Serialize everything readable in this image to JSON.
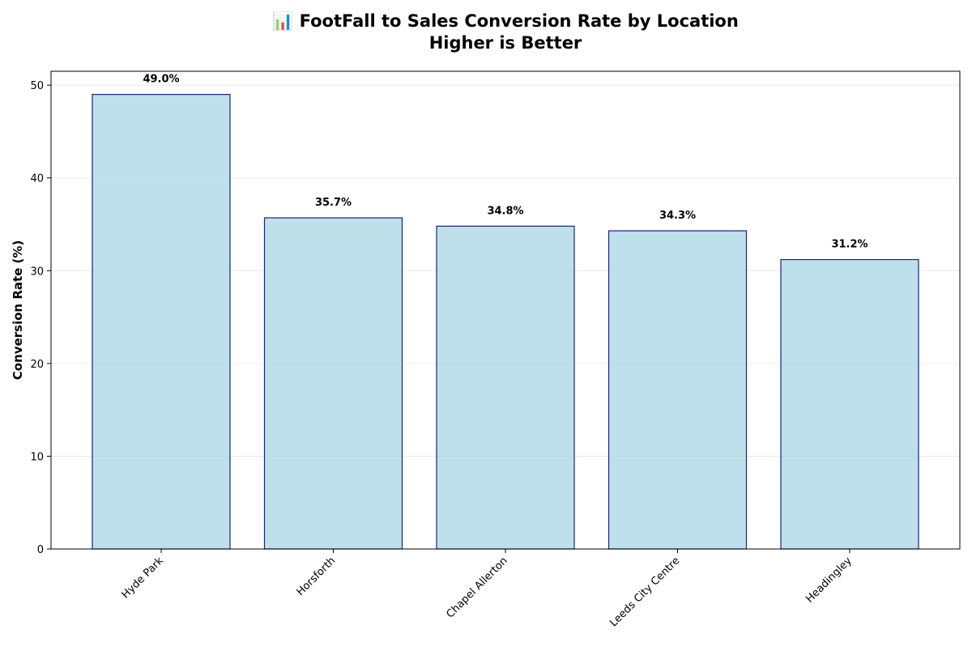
{
  "chart_data": {
    "type": "bar",
    "title": "📊 FootFall to Sales Conversion Rate by Location",
    "subtitle": "Higher is Better",
    "xlabel": "",
    "ylabel": "Conversion Rate (%)",
    "categories": [
      "Hyde Park",
      "Horsforth",
      "Chapel Allerton",
      "Leeds City Centre",
      "Headingley"
    ],
    "values": [
      49.0,
      35.7,
      34.8,
      34.3,
      31.2
    ],
    "data_labels": [
      "49.0%",
      "35.7%",
      "34.8%",
      "34.3%",
      "31.2%"
    ],
    "ylim": [
      0,
      51.5
    ],
    "yticks": [
      0,
      10,
      20,
      30,
      40,
      50
    ],
    "ytick_labels": [
      "0",
      "10",
      "20",
      "30",
      "40",
      "50"
    ],
    "grid": "y",
    "legend": "none",
    "colors": {
      "bar_fill": "#add8e6",
      "bar_edge": "#1a237e",
      "grid": "#e6e6e6",
      "axis": "#000000"
    }
  }
}
